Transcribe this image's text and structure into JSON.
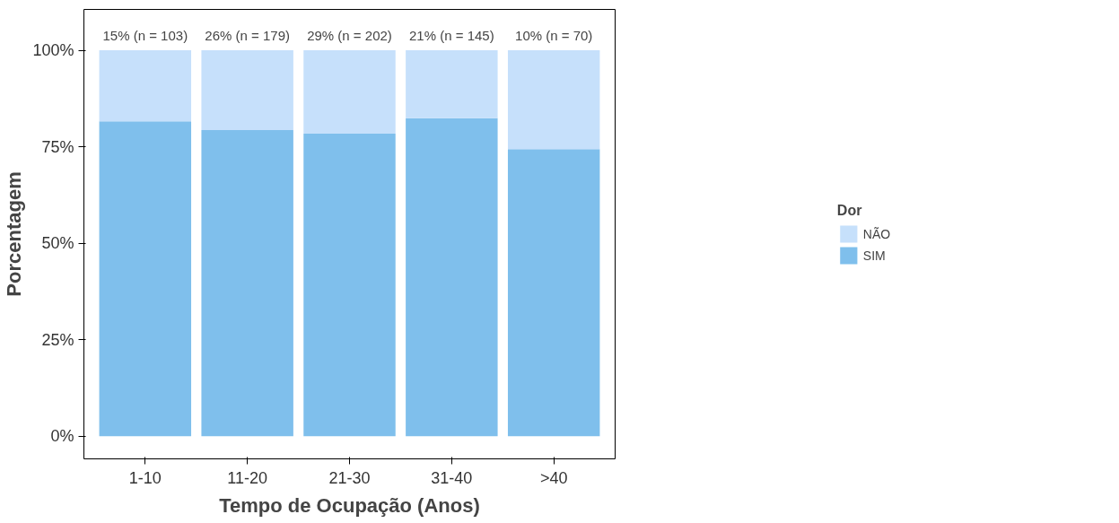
{
  "chart_data": {
    "type": "bar",
    "stacked": true,
    "xlabel": "Tempo de Ocupação (Anos)",
    "ylabel": "Porcentagem",
    "legend_title": "Dor",
    "legend": "right",
    "grid": false,
    "categories": [
      "1-10",
      "11-20",
      "21-30",
      "31-40",
      ">40"
    ],
    "series": [
      {
        "name": "SIM",
        "color": "#7fbfec",
        "values": [
          81.6,
          79.3,
          78.4,
          82.4,
          74.4
        ]
      },
      {
        "name": "NÃO",
        "color": "#c6e0fb",
        "values": [
          18.4,
          20.7,
          21.6,
          17.6,
          25.6
        ]
      }
    ],
    "ylim": [
      -5.9,
      110.6
    ],
    "yticks": [
      {
        "value": 0,
        "label": "0%"
      },
      {
        "value": 25,
        "label": "25%"
      },
      {
        "value": 50,
        "label": "50%"
      },
      {
        "value": 75,
        "label": "75%"
      },
      {
        "value": 100,
        "label": "100%"
      }
    ],
    "annotations": [
      {
        "text": "15% (n = 103)",
        "x": "1-10",
        "y": 100
      },
      {
        "text": "26% (n = 179)",
        "x": "11-20",
        "y": 100
      },
      {
        "text": "29% (n = 202)",
        "x": "21-30",
        "y": 100
      },
      {
        "text": "21% (n = 145)",
        "x": "31-40",
        "y": 100
      },
      {
        "text": "10% (n = 70)",
        "x": ">40",
        "y": 100
      }
    ]
  }
}
